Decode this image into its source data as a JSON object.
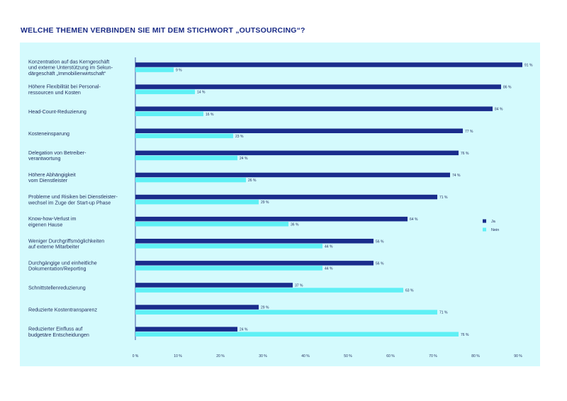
{
  "title": "WELCHE THEMEN VERBINDEN SIE MIT DEM STICHWORT „OUTSOURCING“?",
  "colors": {
    "ja": "#1a2c8c",
    "nein": "#5ff0f5",
    "panel": "#d4fafd",
    "axis": "#1a2c8c"
  },
  "chart_data": {
    "type": "bar",
    "orientation": "horizontal",
    "title": "WELCHE THEMEN VERBINDEN SIE MIT DEM STICHWORT „OUTSOURCING“?",
    "categories": [
      [
        "Konzentration auf das Kerngeschäft",
        "und externe Unterstützung im Sekun-",
        "därgeschäft „Immobilienwirtschaft“"
      ],
      [
        "Höhere Flexibilität bei Personal-",
        "ressourcen und Kosten"
      ],
      [
        "Head-Count-Reduzierung"
      ],
      [
        "Kosteneinsparung"
      ],
      [
        "Delegation von Betreiber-",
        "verantwortung"
      ],
      [
        "Höhere Abhängigkeit",
        "vom Dienstleister"
      ],
      [
        "Probleme und Risiken bei Dienstleister-",
        "wechsel im Zuge der Start-up Phase"
      ],
      [
        "Know-how-Verlust im",
        "eigenen Hause"
      ],
      [
        "Weniger Durchgriffsmöglichkeiten",
        "auf externe Mitarbeiter"
      ],
      [
        "Durchgängige und einheitliche",
        "Dokumentation/Reporting"
      ],
      [
        "Schnittstellenreduzierung"
      ],
      [
        "Reduzierte Kostentransparenz"
      ],
      [
        "Reduzierter Einfluss auf",
        "budgetäre Entscheidungen"
      ]
    ],
    "series": [
      {
        "name": "Ja",
        "values": [
          91,
          86,
          84,
          77,
          76,
          74,
          71,
          64,
          56,
          56,
          37,
          29,
          24
        ],
        "labels": [
          "91 %",
          "86 %",
          "84 %",
          "77 %",
          "76 %",
          "74 %",
          "71 %",
          "64 %",
          "56 %",
          "56 %",
          "37 %",
          "29 %",
          "24 %"
        ]
      },
      {
        "name": "Nein",
        "values": [
          9,
          14,
          16,
          23,
          24,
          26,
          29,
          36,
          44,
          44,
          63,
          71,
          76
        ],
        "labels": [
          "9 %",
          "14 %",
          "16 %",
          "23 %",
          "24 %",
          "26 %",
          "29 %",
          "36 %",
          "44 %",
          "44 %",
          "63 %",
          "71 %",
          "76 %"
        ]
      }
    ],
    "xlim": [
      0,
      90
    ],
    "x_ticks": [
      "0 %",
      "10 %",
      "20 %",
      "30 %",
      "40 %",
      "50 %",
      "60 %",
      "70 %",
      "80 %",
      "90 %"
    ],
    "legend": [
      "Ja",
      "Nein"
    ],
    "legend_position": "right",
    "grid": false
  }
}
